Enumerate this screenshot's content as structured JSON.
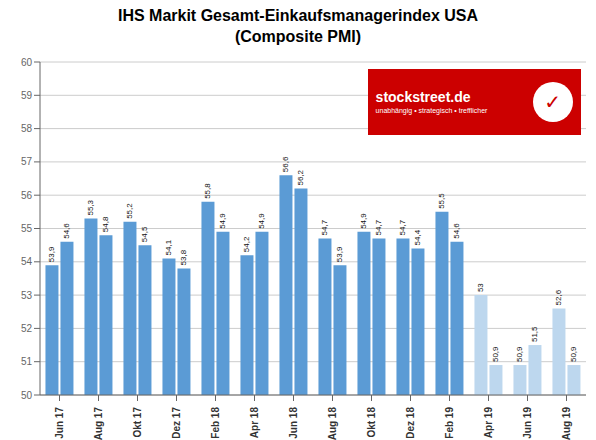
{
  "chart_data": {
    "type": "bar",
    "title": "IHS Markit Gesamt-Einkaufsmanagerindex USA",
    "subtitle": "(Composite PMI)",
    "categories": [
      "Jun 17",
      "Aug 17",
      "Okt 17",
      "Dez 17",
      "Feb 18",
      "Apr 18",
      "Jun 18",
      "Aug 18",
      "Okt 18",
      "Dez 18",
      "Feb 19",
      "Apr 19",
      "Jun 19",
      "Aug 19"
    ],
    "series": [
      {
        "values": [
          53.9,
          55.3,
          55.2,
          54.1,
          55.8,
          54.2,
          56.6,
          54.7,
          54.9,
          54.7,
          55.5,
          53.0,
          50.9,
          52.6
        ],
        "value_labels": [
          "53,9",
          "55,3",
          "55,2",
          "54,1",
          "55,8",
          "54,2",
          "56,6",
          "54,7",
          "54,9",
          "54,7",
          "55,5",
          "53",
          "50,9",
          "52,6"
        ],
        "colors": [
          "#5B9BD5",
          "#5B9BD5",
          "#5B9BD5",
          "#5B9BD5",
          "#5B9BD5",
          "#5B9BD5",
          "#5B9BD5",
          "#5B9BD5",
          "#5B9BD5",
          "#5B9BD5",
          "#5B9BD5",
          "#BDD7EE",
          "#BDD7EE",
          "#BDD7EE"
        ]
      },
      {
        "values": [
          54.6,
          54.8,
          54.5,
          53.8,
          54.9,
          54.9,
          56.2,
          53.9,
          54.7,
          54.4,
          54.6,
          50.9,
          51.5,
          50.9
        ],
        "value_labels": [
          "54,6",
          "54,8",
          "54,5",
          "53,8",
          "54,9",
          "54,9",
          "56,2",
          "53,9",
          "54,7",
          "54,4",
          "54,6",
          "50,9",
          "51,5",
          "50,9"
        ],
        "colors": [
          "#5B9BD5",
          "#5B9BD5",
          "#5B9BD5",
          "#5B9BD5",
          "#5B9BD5",
          "#5B9BD5",
          "#5B9BD5",
          "#5B9BD5",
          "#5B9BD5",
          "#5B9BD5",
          "#5B9BD5",
          "#BDD7EE",
          "#BDD7EE",
          "#BDD7EE"
        ]
      }
    ],
    "ylim": [
      50,
      60
    ],
    "yticks": [
      50,
      51,
      52,
      53,
      54,
      55,
      56,
      57,
      58,
      59,
      60
    ],
    "grid": true,
    "data_labels": true,
    "annotations": [
      "stockstreet.de",
      "unabhängig • strategisch • trefflicher",
      "✓"
    ]
  }
}
